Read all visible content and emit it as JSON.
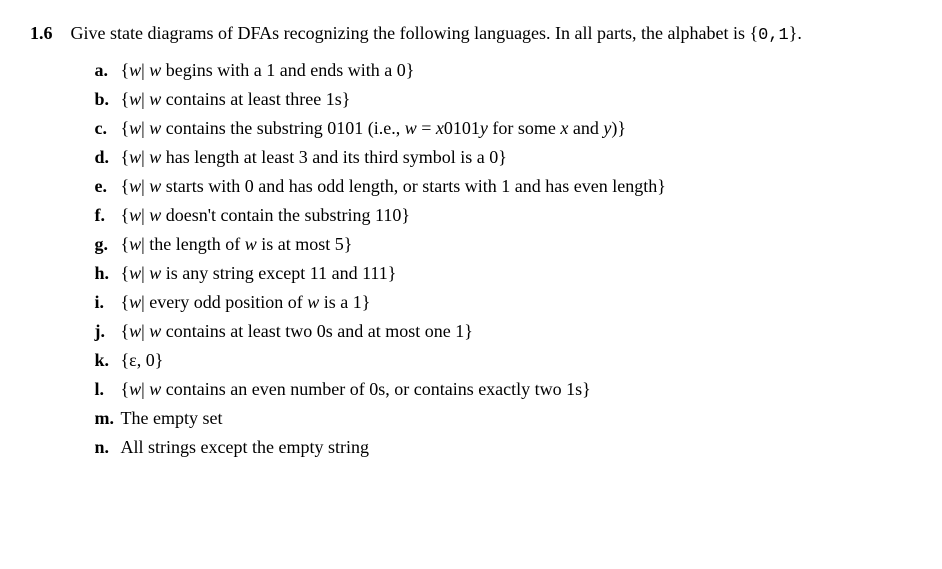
{
  "problem": {
    "number": "1.6",
    "statement_prefix": "Give state diagrams of DFAs recognizing the following languages. In all parts, the alphabet is {",
    "alphabet": "0,1",
    "statement_suffix": "}.",
    "items": [
      {
        "label": "a.",
        "prefix": "{",
        "var": "w",
        "mid": "| ",
        "var2": "w",
        "desc": " begins with a 1 and ends with a 0}"
      },
      {
        "label": "b.",
        "prefix": "{",
        "var": "w",
        "mid": "| ",
        "var2": "w",
        "desc": " contains at least three 1s}"
      },
      {
        "label": "c.",
        "prefix": "{",
        "var": "w",
        "mid": "| ",
        "var2": "w",
        "desc_pre": " contains the substring 0101 (i.e., ",
        "eq_w": "w",
        "eq_eq": " = ",
        "eq_x": "x",
        "eq_const": "0101",
        "eq_y": "y",
        "desc_mid": " for some ",
        "eq_x2": "x",
        "desc_and": " and ",
        "eq_y2": "y",
        "desc_suf": ")}"
      },
      {
        "label": "d.",
        "prefix": "{",
        "var": "w",
        "mid": "| ",
        "var2": "w",
        "desc": " has length at least 3 and its third symbol is a 0}"
      },
      {
        "label": "e.",
        "prefix": "{",
        "var": "w",
        "mid": "| ",
        "var2": "w",
        "desc": " starts with 0 and has odd length, or starts with 1 and has even length}"
      },
      {
        "label": "f.",
        "prefix": "{",
        "var": "w",
        "mid": "| ",
        "var2": "w",
        "desc": " doesn't contain the substring 110}"
      },
      {
        "label": "g.",
        "prefix": "{",
        "var": "w",
        "mid": "| the length of ",
        "var2": "w",
        "desc": " is at most 5}"
      },
      {
        "label": "h.",
        "prefix": "{",
        "var": "w",
        "mid": "| ",
        "var2": "w",
        "desc": " is any string except 11 and 111}"
      },
      {
        "label": "i.",
        "prefix": "{",
        "var": "w",
        "mid": "| every odd position of ",
        "var2": "w",
        "desc": " is a 1}"
      },
      {
        "label": "j.",
        "prefix": "{",
        "var": "w",
        "mid": "| ",
        "var2": "w",
        "desc": " contains at least two 0s and at most one 1}"
      },
      {
        "label": "k.",
        "set": "{ε, 0}"
      },
      {
        "label": "l.",
        "prefix": "{",
        "var": "w",
        "mid": "| ",
        "var2": "w",
        "desc": " contains an even number of 0s, or contains exactly two 1s}"
      },
      {
        "label": "m.",
        "plain": "The empty set"
      },
      {
        "label": "n.",
        "plain": "All strings except the empty string"
      }
    ]
  },
  "style": {
    "font_family": "Georgia, Times New Roman, serif",
    "font_size_pt": 14,
    "text_color": "#000000",
    "background_color": "#ffffff",
    "bold_weight": "bold",
    "italic_style": "italic",
    "tt_family": "Courier New, monospace"
  }
}
